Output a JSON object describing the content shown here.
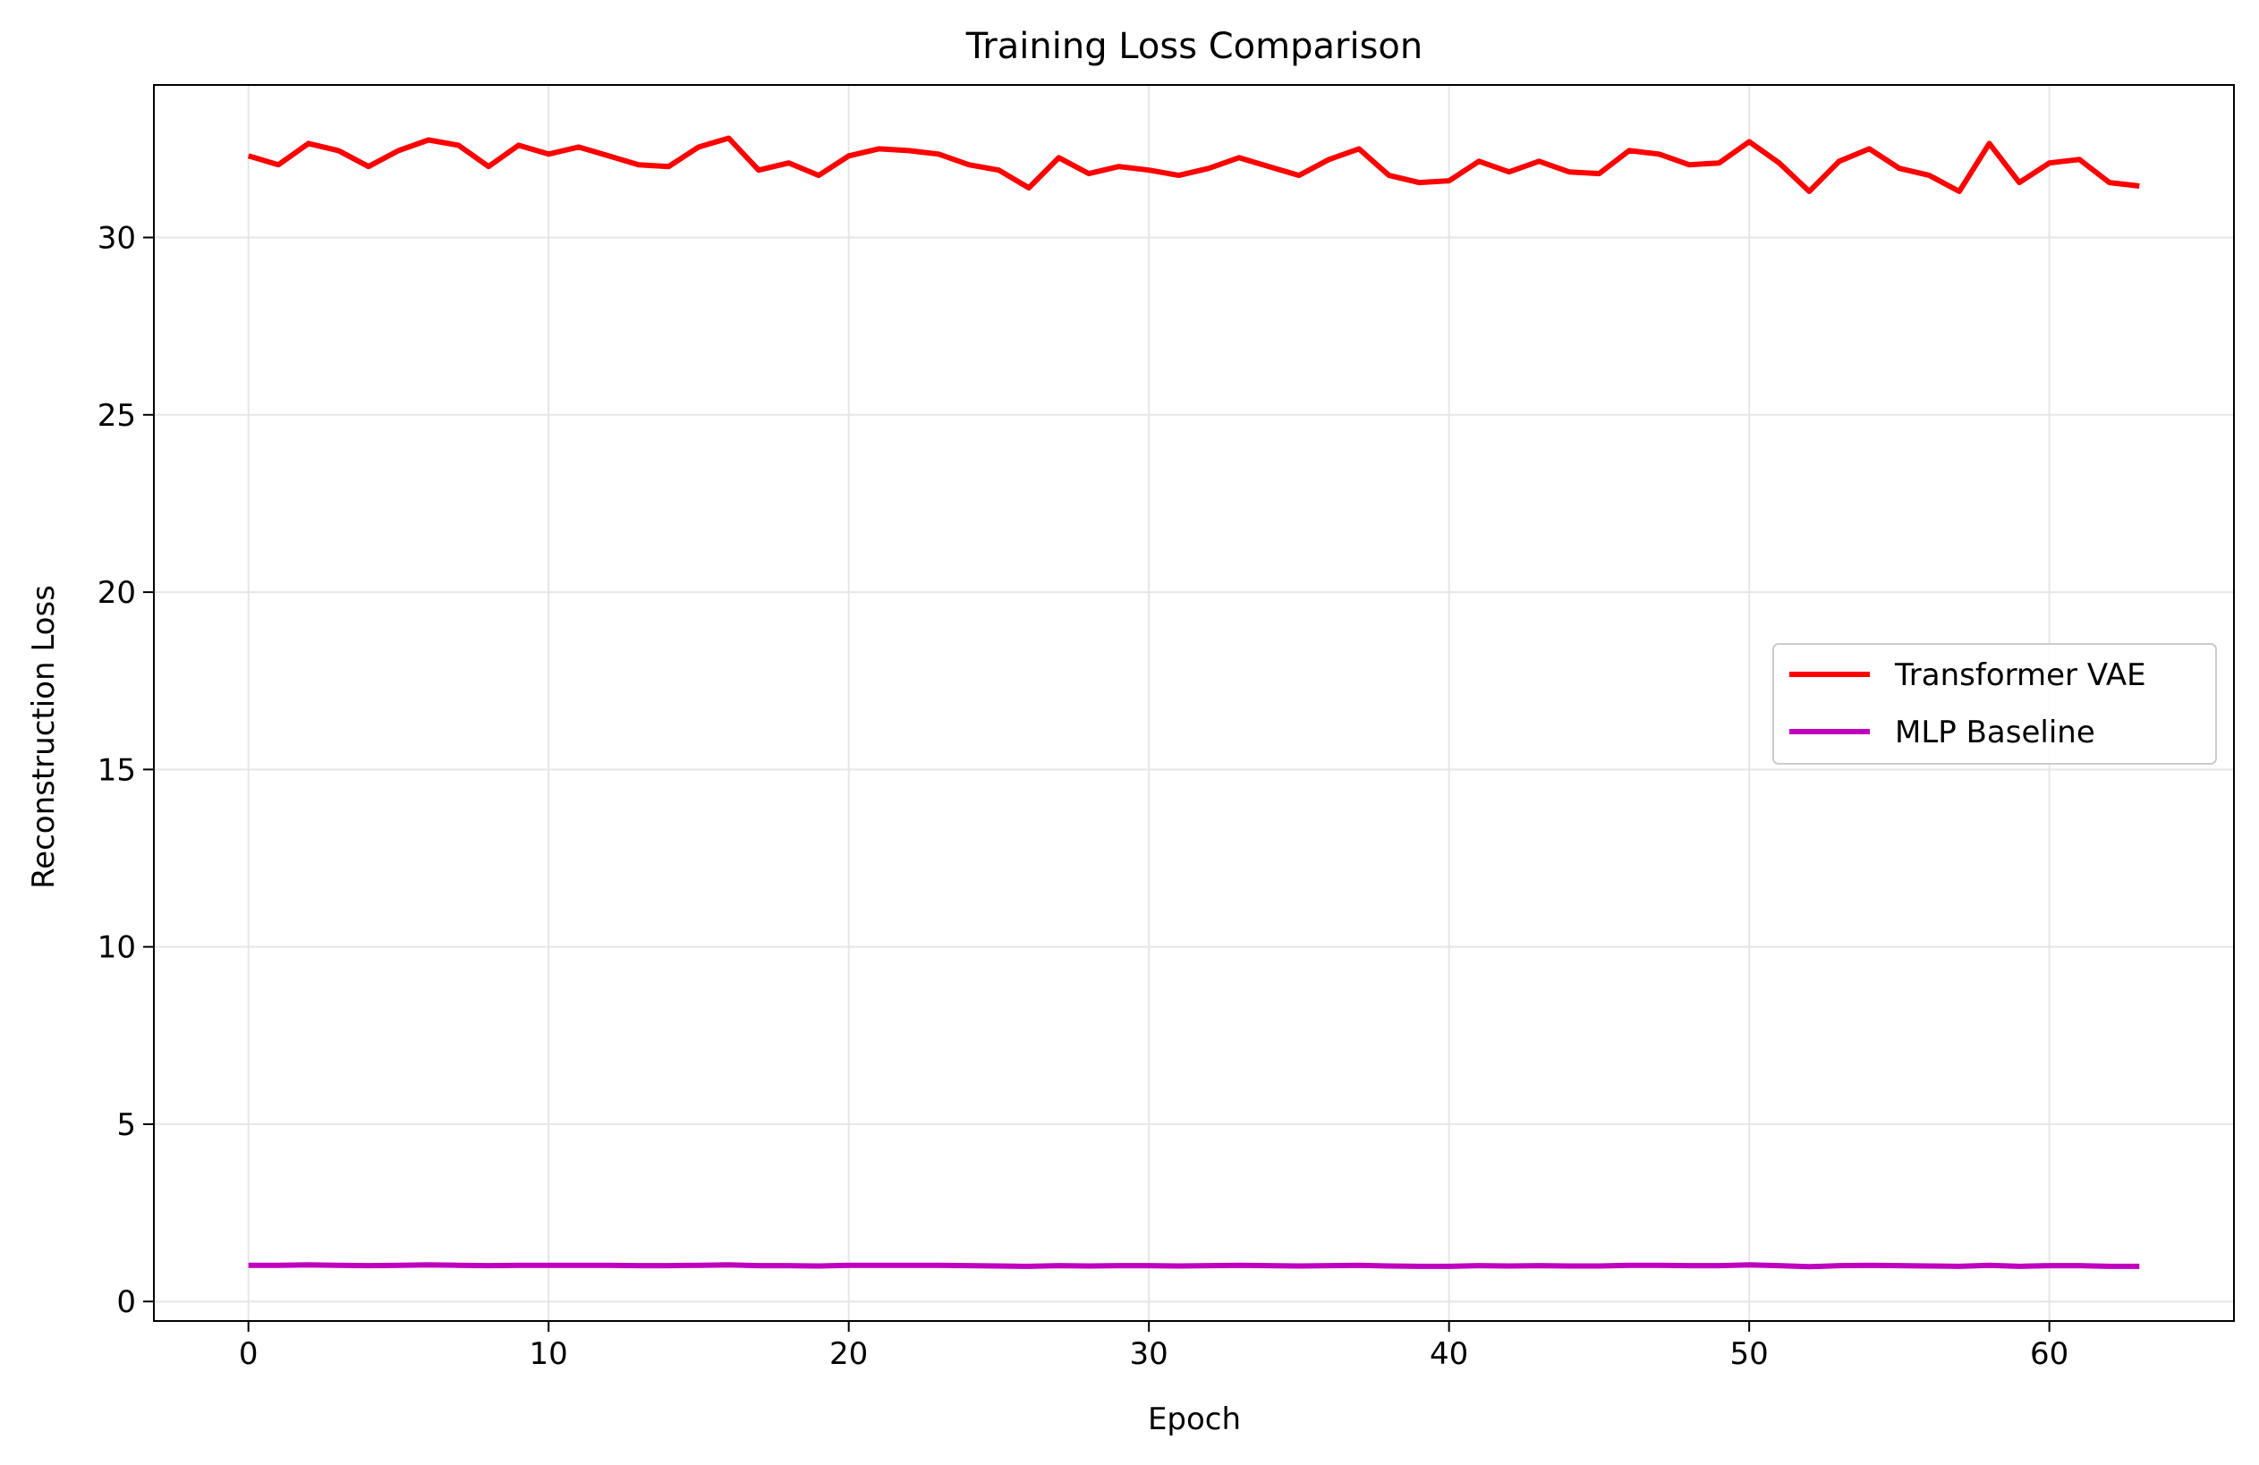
{
  "chart_data": {
    "type": "line",
    "title": "Training Loss Comparison",
    "xlabel": "Epoch",
    "ylabel": "Reconstruction Loss",
    "xlim": [
      -3.15,
      66.15
    ],
    "ylim": [
      -0.55,
      34.3
    ],
    "xticks": [
      0,
      10,
      20,
      30,
      40,
      50,
      60
    ],
    "yticks": [
      0,
      5,
      10,
      15,
      20,
      25,
      30
    ],
    "grid": true,
    "legend_position": "center-right",
    "x": [
      0,
      1,
      2,
      3,
      4,
      5,
      6,
      7,
      8,
      9,
      10,
      11,
      12,
      13,
      14,
      15,
      16,
      17,
      18,
      19,
      20,
      21,
      22,
      23,
      24,
      25,
      26,
      27,
      28,
      29,
      30,
      31,
      32,
      33,
      34,
      35,
      36,
      37,
      38,
      39,
      40,
      41,
      42,
      43,
      44,
      45,
      46,
      47,
      48,
      49,
      50,
      51,
      52,
      53,
      54,
      55,
      56,
      57,
      58,
      59,
      60,
      61,
      62,
      63
    ],
    "series": [
      {
        "name": "Transformer VAE",
        "color": "#ff0000",
        "values": [
          32.3,
          32.05,
          32.65,
          32.45,
          32.0,
          32.45,
          32.75,
          32.6,
          32.0,
          32.6,
          32.35,
          32.55,
          32.3,
          32.05,
          32.0,
          32.55,
          32.8,
          31.9,
          32.1,
          31.75,
          32.3,
          32.5,
          32.45,
          32.35,
          32.05,
          31.9,
          31.4,
          32.25,
          31.8,
          32.0,
          31.9,
          31.75,
          31.95,
          32.25,
          32.0,
          31.75,
          32.2,
          32.5,
          31.75,
          31.55,
          31.6,
          32.15,
          31.85,
          32.15,
          31.85,
          31.8,
          32.45,
          32.35,
          32.05,
          32.1,
          32.7,
          32.1,
          31.3,
          32.15,
          32.5,
          31.95,
          31.75,
          31.3,
          32.65,
          31.55,
          32.1,
          32.2,
          31.55,
          31.45
        ]
      },
      {
        "name": "MLP Baseline",
        "color": "#bf00bf",
        "values": [
          1.02,
          1.02,
          1.03,
          1.02,
          1.01,
          1.02,
          1.03,
          1.02,
          1.01,
          1.02,
          1.02,
          1.02,
          1.02,
          1.01,
          1.01,
          1.02,
          1.03,
          1.01,
          1.01,
          1.0,
          1.02,
          1.02,
          1.02,
          1.02,
          1.01,
          1.0,
          0.99,
          1.01,
          1.0,
          1.01,
          1.01,
          1.0,
          1.01,
          1.02,
          1.01,
          1.0,
          1.01,
          1.02,
          1.0,
          0.99,
          0.99,
          1.01,
          1.0,
          1.01,
          1.0,
          1.0,
          1.02,
          1.02,
          1.01,
          1.01,
          1.03,
          1.01,
          0.98,
          1.01,
          1.02,
          1.01,
          1.0,
          0.99,
          1.02,
          0.99,
          1.01,
          1.01,
          0.99,
          0.99
        ]
      }
    ]
  }
}
